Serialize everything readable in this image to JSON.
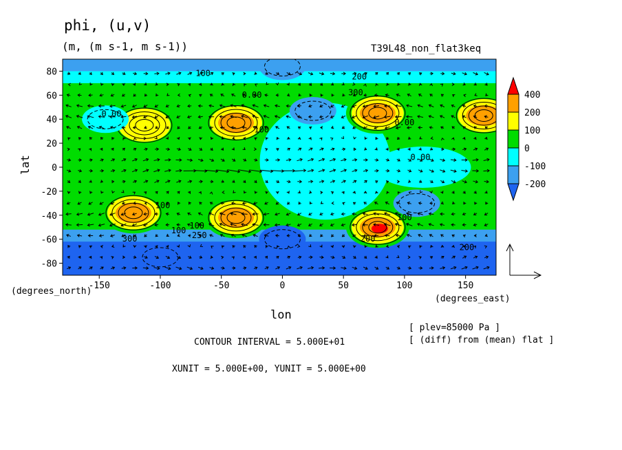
{
  "header": {
    "title": "phi, (u,v)",
    "units": "(m, (m s-1, m s-1))",
    "experiment": "T39L48_non_flat3keq"
  },
  "footer": {
    "lon_label_unit": "(degrees_east)",
    "lat_label_unit": "(degrees_north)",
    "plev_note": "[ plev=85000 Pa ]",
    "diff_note": "[ (diff) from (mean) flat ]",
    "contour_interval": "CONTOUR INTERVAL = 5.000E+01",
    "vector_units": "XUNIT = 5.000E+00, YUNIT = 5.000E+00"
  },
  "colors": {
    "le_-200": "#1e64f0",
    "n200_n100": "#3ca0f0",
    "n100_0": "#00ffff",
    "0_100": "#00dc00",
    "100_200": "#ffff00",
    "200_400": "#ffa000",
    "ge_400": "#ff0000"
  },
  "chart_data": {
    "type": "heatmap",
    "title": "phi, (u,v)",
    "xlabel": "lon",
    "ylabel": "lat",
    "xlim": [
      -180,
      175
    ],
    "ylim": [
      -90,
      90
    ],
    "xticks": [
      -150,
      -100,
      -50,
      0,
      50,
      100,
      150
    ],
    "yticks": [
      -80,
      -60,
      -40,
      -20,
      0,
      20,
      40,
      60,
      80
    ],
    "colorbar": {
      "levels": [
        "400",
        "200",
        "100",
        "0",
        "-100",
        "-200"
      ],
      "extend": "both"
    },
    "contour_labels": [
      {
        "text": "100",
        "lon": -65,
        "lat": 76
      },
      {
        "text": "0.00",
        "lon": -25,
        "lat": 58
      },
      {
        "text": "0.00",
        "lon": -140,
        "lat": 42
      },
      {
        "text": "100",
        "lon": -17,
        "lat": 29
      },
      {
        "text": "200",
        "lon": 63,
        "lat": 73
      },
      {
        "text": "300",
        "lon": 60,
        "lat": 60
      },
      {
        "text": "0.00",
        "lon": 100,
        "lat": 35
      },
      {
        "text": "0.00",
        "lon": 113,
        "lat": 6
      },
      {
        "text": "100",
        "lon": -98,
        "lat": -34
      },
      {
        "text": "100",
        "lon": -85,
        "lat": -55
      },
      {
        "text": "100",
        "lon": -70,
        "lat": -51
      },
      {
        "text": "250",
        "lon": -68,
        "lat": -59
      },
      {
        "text": "300",
        "lon": -125,
        "lat": -62
      },
      {
        "text": "100",
        "lon": 100,
        "lat": -44
      },
      {
        "text": "200",
        "lon": 70,
        "lat": -62
      },
      {
        "text": "200",
        "lon": 151,
        "lat": -69
      }
    ],
    "features": [
      {
        "kind": "high",
        "lon": -38,
        "lat": 37,
        "peak": 250
      },
      {
        "kind": "high",
        "lon": 78,
        "lat": 45,
        "peak": 250
      },
      {
        "kind": "high",
        "lon": 165,
        "lat": 43,
        "peak": 200
      },
      {
        "kind": "high",
        "lon": -113,
        "lat": 35,
        "peak": 150
      },
      {
        "kind": "high",
        "lon": -38,
        "lat": -42,
        "peak": 250
      },
      {
        "kind": "high",
        "lon": -122,
        "lat": -38,
        "peak": 200
      },
      {
        "kind": "high",
        "lon": 78,
        "lat": -50,
        "peak": 420
      },
      {
        "kind": "low",
        "lon": 25,
        "lat": 47,
        "peak": -200
      },
      {
        "kind": "low",
        "lon": -145,
        "lat": 40,
        "peak": -120
      },
      {
        "kind": "low",
        "lon": 110,
        "lat": -30,
        "peak": -150
      },
      {
        "kind": "low",
        "lon": 0,
        "lat": -60,
        "peak": -250
      },
      {
        "kind": "low",
        "lon": -100,
        "lat": -75,
        "peak": -300
      },
      {
        "kind": "low",
        "lon": 0,
        "lat": 84,
        "peak": -150
      }
    ]
  }
}
